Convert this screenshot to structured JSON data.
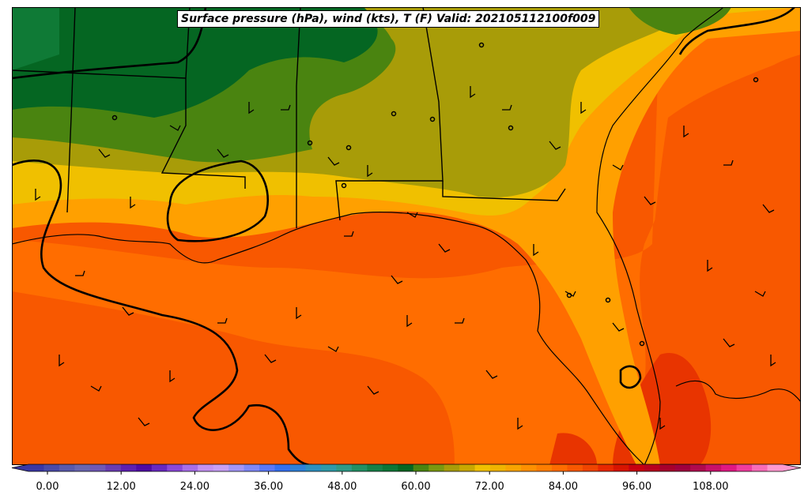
{
  "map": {
    "title": "Surface pressure (hPa), wind (kts), T (F) Valid: 202105112100f009",
    "colorbar": {
      "ticks": [
        "0.00",
        "12.00",
        "24.00",
        "36.00",
        "48.00",
        "60.00",
        "72.00",
        "84.00",
        "96.00",
        "108.00"
      ],
      "colors": [
        "#3a37a4",
        "#4a4aa8",
        "#5a5aab",
        "#6a66b0",
        "#7058b6",
        "#6a3cb2",
        "#5e1fb0",
        "#4f0aa4",
        "#6828c0",
        "#8b48d8",
        "#a86ee8",
        "#c492f2",
        "#c8a0f6",
        "#a496f8",
        "#8088f8",
        "#5a78f8",
        "#3470f0",
        "#2e80d8",
        "#2d90c0",
        "#2e9aa8",
        "#2e9a86",
        "#239064",
        "#168048",
        "#0b7636",
        "#056622",
        "#4a8410",
        "#7a9810",
        "#a89c08",
        "#c8a800",
        "#f0c000",
        "#f0b400",
        "#f8a400",
        "#ff9000",
        "#ff7e00",
        "#ff6c00",
        "#f85800",
        "#f04400",
        "#e82800",
        "#d81400",
        "#c80010",
        "#b8001e",
        "#a8002c",
        "#a0003e",
        "#b00a4e",
        "#c8106a",
        "#e01882",
        "#f03c9e",
        "#f86cb8",
        "#ff9ad0"
      ]
    }
  }
}
